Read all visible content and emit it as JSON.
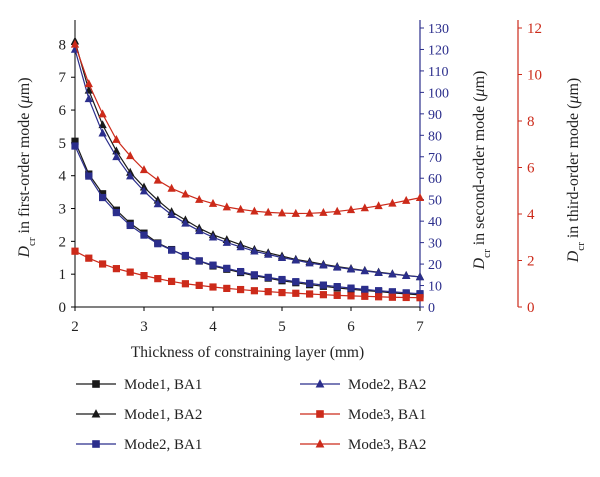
{
  "chart_data": {
    "type": "line",
    "x_axis": {
      "label": "Thickness of constraining layer (mm)",
      "range": [
        2,
        7
      ],
      "ticks": [
        2,
        3,
        4,
        5,
        6,
        7
      ]
    },
    "y_axes": {
      "left": {
        "label_main": "D",
        "label_sub": "cr",
        "label_rest": " in first-order mode (",
        "label_unit": "μ",
        "label_end": "m)",
        "range": [
          0,
          8.5
        ],
        "ticks": [
          0,
          1,
          2,
          3,
          4,
          5,
          6,
          7,
          8
        ],
        "color": "#000000"
      },
      "right1": {
        "label_main": "D",
        "label_sub": "cr",
        "label_rest": " in second-order mode (",
        "label_unit": "μ",
        "label_end": "m)",
        "range": [
          0,
          130
        ],
        "ticks": [
          0,
          10,
          20,
          30,
          40,
          50,
          60,
          70,
          80,
          90,
          100,
          110,
          120,
          130
        ],
        "color": "#2b2e8c"
      },
      "right2": {
        "label_main": "D",
        "label_sub": "cr",
        "label_rest": " in third-order mode (",
        "label_unit": "μ",
        "label_end": "m)",
        "range": [
          0,
          12
        ],
        "ticks": [
          0,
          2,
          4,
          6,
          8,
          10,
          12
        ],
        "color": "#cc2a1a"
      }
    },
    "x": [
      2.0,
      2.2,
      2.4,
      2.6,
      2.8,
      3.0,
      3.2,
      3.4,
      3.6,
      3.8,
      4.0,
      4.2,
      4.4,
      4.6,
      4.8,
      5.0,
      5.2,
      5.4,
      5.6,
      5.8,
      6.0,
      6.2,
      6.4,
      6.6,
      6.8,
      7.0
    ],
    "series": [
      {
        "name": "Mode1, BA1",
        "axis": "left",
        "marker": "square",
        "color": "#1a1a1a",
        "values": [
          5.05,
          4.05,
          3.45,
          2.95,
          2.55,
          2.25,
          1.95,
          1.75,
          1.55,
          1.4,
          1.25,
          1.15,
          1.05,
          0.95,
          0.88,
          0.8,
          0.74,
          0.68,
          0.63,
          0.58,
          0.54,
          0.5,
          0.47,
          0.43,
          0.4,
          0.37
        ]
      },
      {
        "name": "Mode1, BA2",
        "axis": "left",
        "marker": "triangle",
        "color": "#1a1a1a",
        "values": [
          8.1,
          6.6,
          5.55,
          4.75,
          4.1,
          3.65,
          3.25,
          2.9,
          2.65,
          2.4,
          2.2,
          2.05,
          1.9,
          1.75,
          1.65,
          1.55,
          1.45,
          1.38,
          1.3,
          1.23,
          1.17,
          1.11,
          1.06,
          1.01,
          0.96,
          0.92
        ]
      },
      {
        "name": "Mode2, BA1",
        "axis": "right1",
        "marker": "square",
        "color": "#2b2e8c",
        "values": [
          75,
          61,
          51,
          44,
          38,
          33.5,
          29.5,
          26.5,
          24,
          21.5,
          19.5,
          18,
          16.5,
          15,
          13.8,
          12.8,
          11.8,
          11,
          10.2,
          9.5,
          8.8,
          8.2,
          7.6,
          7.1,
          6.6,
          6.2
        ]
      },
      {
        "name": "Mode2, BA2",
        "axis": "right1",
        "marker": "triangle",
        "color": "#2b2e8c",
        "values": [
          120,
          97,
          81,
          70,
          61,
          54,
          48,
          43,
          39,
          35.5,
          32.5,
          30,
          28,
          26,
          24.5,
          23,
          21.8,
          20.5,
          19.5,
          18.5,
          17.6,
          16.8,
          16,
          15.3,
          14.6,
          14
        ]
      },
      {
        "name": "Mode3, BA1",
        "axis": "right2",
        "marker": "square",
        "color": "#cc2a1a",
        "values": [
          2.4,
          2.1,
          1.85,
          1.65,
          1.5,
          1.35,
          1.22,
          1.1,
          1.0,
          0.93,
          0.86,
          0.8,
          0.75,
          0.7,
          0.66,
          0.62,
          0.59,
          0.56,
          0.53,
          0.5,
          0.48,
          0.46,
          0.44,
          0.42,
          0.41,
          0.4
        ]
      },
      {
        "name": "Mode3, BA2",
        "axis": "right2",
        "marker": "triangle",
        "color": "#cc2a1a",
        "values": [
          11.3,
          9.6,
          8.3,
          7.2,
          6.5,
          5.9,
          5.45,
          5.1,
          4.85,
          4.62,
          4.45,
          4.3,
          4.2,
          4.12,
          4.07,
          4.04,
          4.02,
          4.03,
          4.06,
          4.11,
          4.18,
          4.26,
          4.35,
          4.46,
          4.58,
          4.7
        ]
      }
    ],
    "legend": {
      "placement": "bottom",
      "columns": [
        [
          "Mode1, BA1",
          "Mode1, BA2",
          "Mode2, BA1"
        ],
        [
          "Mode2, BA2",
          "Mode3, BA1",
          "Mode3, BA2"
        ]
      ]
    },
    "grid": false
  }
}
